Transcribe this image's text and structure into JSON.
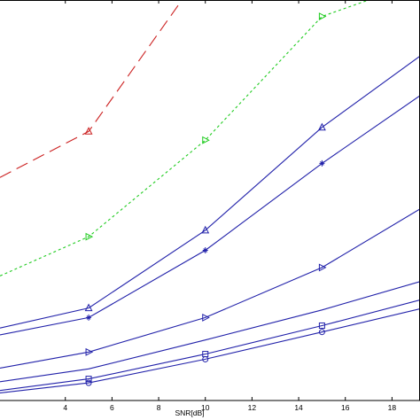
{
  "chart_data": {
    "type": "line",
    "title": "",
    "xlabel": "SNR[dB]",
    "ylabel": "",
    "xlim": [
      1.2,
      19.2
    ],
    "ylim": [
      0,
      100
    ],
    "xticks": [
      4,
      6,
      8,
      10,
      12,
      14,
      16,
      18
    ],
    "grid": false,
    "legend": "none",
    "series": [
      {
        "color": "#cc2222",
        "dash": "long-dash",
        "marker": "triangle",
        "x": [
          1.2,
          5,
          9
        ],
        "y": [
          55.7,
          67.2,
          100
        ]
      },
      {
        "color": "#22cc22",
        "dash": "dotted",
        "marker": "triangle-right",
        "x": [
          1.2,
          5,
          10,
          15,
          17
        ],
        "y": [
          31.1,
          40.9,
          65.0,
          95.9,
          100
        ]
      },
      {
        "color": "#2222aa",
        "dash": "solid",
        "marker": "triangle",
        "x": [
          1.2,
          5,
          10,
          15,
          19.2
        ],
        "y": [
          18.1,
          23.1,
          42.5,
          68.2,
          86.0
        ]
      },
      {
        "color": "#2222aa",
        "dash": "solid",
        "marker": "star",
        "x": [
          1.2,
          5,
          10,
          15,
          19.2
        ],
        "y": [
          16.4,
          20.7,
          37.5,
          59.2,
          76.1
        ]
      },
      {
        "color": "#2222aa",
        "dash": "solid",
        "marker": "triangle-right",
        "x": [
          1.2,
          5,
          10,
          15,
          19.2
        ],
        "y": [
          8.1,
          12.1,
          20.7,
          33.2,
          47.8
        ]
      },
      {
        "color": "#2222aa",
        "dash": "solid",
        "marker": "none",
        "x": [
          1.2,
          5,
          10,
          15,
          19.2
        ],
        "y": [
          4.7,
          7.9,
          15.1,
          22.6,
          29.7
        ]
      },
      {
        "color": "#2222aa",
        "dash": "solid",
        "marker": "square",
        "x": [
          1.2,
          5,
          10,
          15,
          19.2
        ],
        "y": [
          2.5,
          5.4,
          11.6,
          18.7,
          25.1
        ]
      },
      {
        "color": "#2222aa",
        "dash": "solid",
        "marker": "circle",
        "x": [
          1.2,
          5,
          10,
          15,
          19.2
        ],
        "y": [
          1.9,
          4.4,
          10.3,
          17.1,
          22.9
        ]
      }
    ]
  }
}
